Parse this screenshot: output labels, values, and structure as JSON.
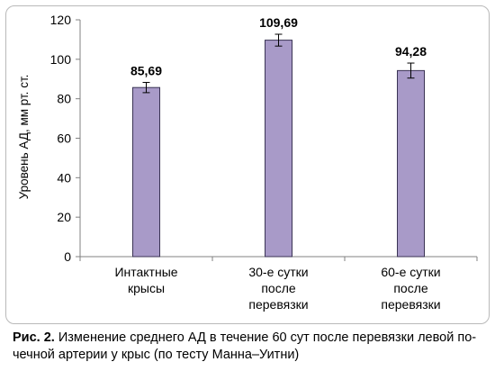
{
  "chart_data": {
    "type": "bar",
    "ylabel": "Уровень АД, мм рт. ст.",
    "ylim": [
      0,
      120
    ],
    "yticks": [
      0,
      20,
      40,
      60,
      80,
      100,
      120
    ],
    "categories": [
      [
        "Интактные",
        "крысы"
      ],
      [
        "30-е сутки",
        "после",
        "перевязки"
      ],
      [
        "60-е сутки",
        "после",
        "перевязки"
      ]
    ],
    "values": [
      85.69,
      109.69,
      94.28
    ],
    "value_labels": [
      "85,69",
      "109,69",
      "94,28"
    ],
    "error": [
      2.6,
      3.0,
      3.8
    ],
    "bar_color": "#a89ac8",
    "bar_edge_color": "#3a3354",
    "grid": false
  },
  "caption": {
    "label": "Рис. 2.",
    "lines": [
      " Изменение среднего АД в течение 60 сут после перевязки левой по-",
      "чечной артерии у крыс (по тесту Манна–Уитни)"
    ]
  }
}
